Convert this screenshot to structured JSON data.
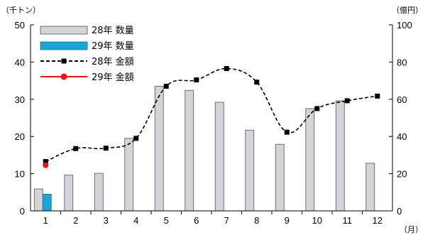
{
  "chart_data": {
    "type": "bar",
    "categories": [
      "1",
      "2",
      "3",
      "4",
      "5",
      "6",
      "7",
      "8",
      "9",
      "10",
      "11",
      "12"
    ],
    "x_unit": "（月）",
    "y_left": {
      "unit": "（千トン）",
      "range": [
        0,
        50
      ],
      "ticks": [
        "0",
        "10",
        "20",
        "30",
        "40",
        "50"
      ]
    },
    "y_right": {
      "unit": "（億円）",
      "range": [
        0,
        100
      ],
      "ticks": [
        "0",
        "20",
        "40",
        "60",
        "80",
        "100"
      ]
    },
    "series": [
      {
        "name": "28年 数量",
        "kind": "bar",
        "axis": "left",
        "color": "#d3d3d8",
        "values": [
          5.9,
          9.6,
          10.1,
          19.5,
          33.5,
          32.4,
          29.2,
          21.7,
          17.9,
          27.5,
          29.6,
          12.8
        ]
      },
      {
        "name": "29年 数量",
        "kind": "bar",
        "axis": "left",
        "color": "#1aa5d6",
        "values": [
          4.5,
          null,
          null,
          null,
          null,
          null,
          null,
          null,
          null,
          null,
          null,
          null
        ]
      },
      {
        "name": "28年 金額",
        "kind": "line",
        "axis": "right",
        "color": "#000000",
        "style": "dashed-square",
        "values": [
          26.5,
          33.5,
          33.7,
          39.0,
          67.0,
          70.4,
          76.5,
          69.2,
          42.3,
          55.0,
          59.2,
          61.7
        ]
      },
      {
        "name": "29年 金額",
        "kind": "line",
        "axis": "right",
        "color": "#e8141b",
        "style": "solid-circle",
        "values": [
          24.5,
          null,
          null,
          null,
          null,
          null,
          null,
          null,
          null,
          null,
          null,
          null
        ]
      }
    ],
    "legend_position": "top-left",
    "grid": false
  }
}
